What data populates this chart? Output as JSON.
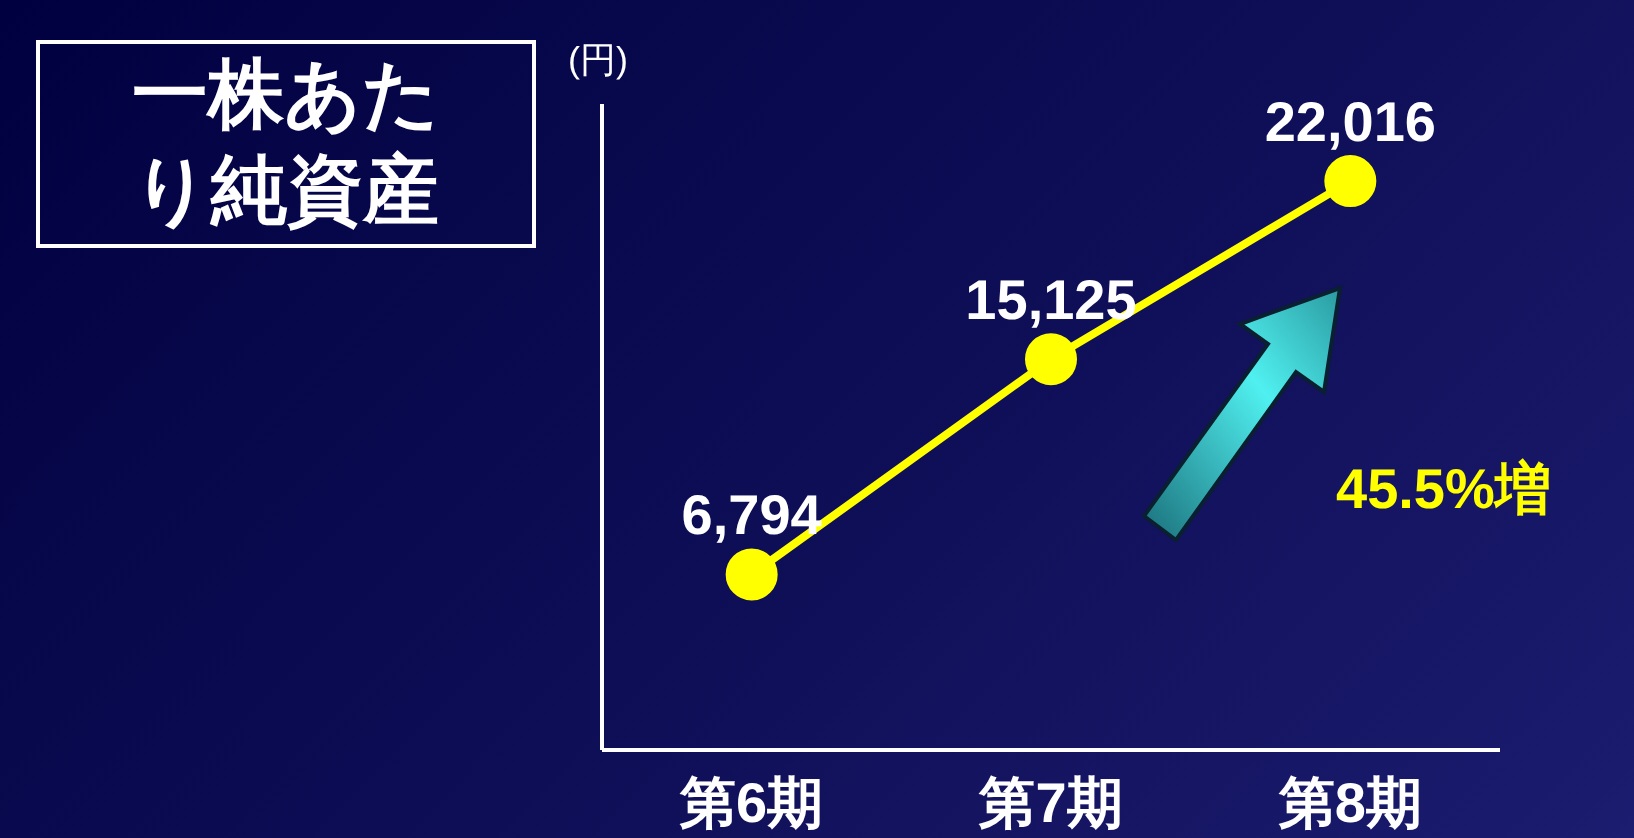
{
  "chart_data": {
    "type": "line",
    "title": "一株あたり純資産",
    "ylabel": "(円)",
    "categories": [
      "第6期",
      "第7期",
      "第8期"
    ],
    "series": [
      {
        "color": "#ffff00",
        "values": [
          6794,
          15125,
          22016
        ],
        "value_labels": [
          "6,794",
          "15,125",
          "22,016"
        ]
      }
    ],
    "ylim": [
      0,
      25000
    ],
    "tick_labels": "x",
    "marker": "circle",
    "annotations": [
      "45.5%増"
    ]
  }
}
